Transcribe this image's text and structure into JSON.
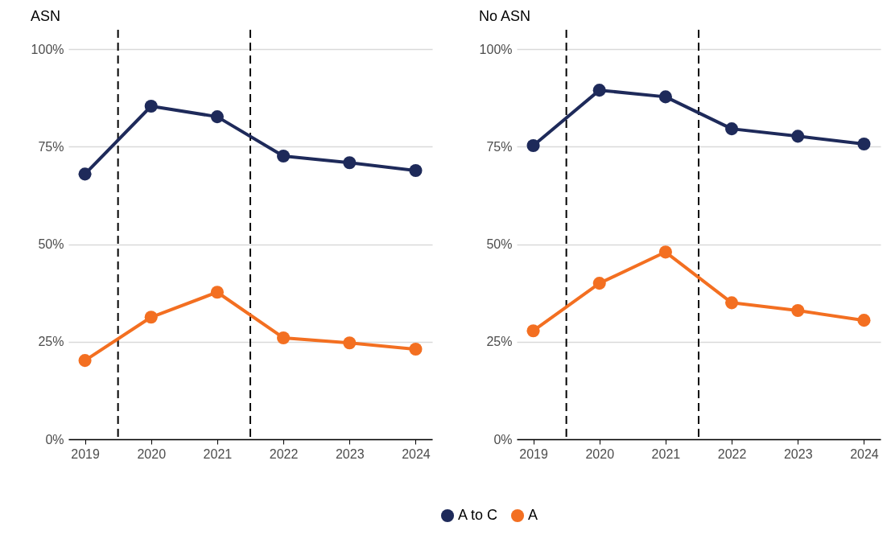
{
  "chart_data": [
    {
      "type": "line",
      "title": "ASN",
      "x": [
        2019,
        2020,
        2021,
        2022,
        2023,
        2024
      ],
      "xlim": [
        2018.75,
        2024.25
      ],
      "xticks": [
        {
          "value": 2019,
          "label": "2019"
        },
        {
          "value": 2020,
          "label": "2020"
        },
        {
          "value": 2021,
          "label": "2021"
        },
        {
          "value": 2022,
          "label": "2022"
        },
        {
          "value": 2023,
          "label": "2023"
        },
        {
          "value": 2024,
          "label": "2024"
        }
      ],
      "ylim": [
        0,
        105
      ],
      "yticks": [
        {
          "value": 0,
          "label": "0%"
        },
        {
          "value": 25,
          "label": "25%"
        },
        {
          "value": 50,
          "label": "50%"
        },
        {
          "value": 75,
          "label": "75%"
        },
        {
          "value": 100,
          "label": "100%"
        }
      ],
      "grid": "y",
      "legend": "bottom",
      "marker": "circle",
      "line_style": "solid",
      "series": [
        {
          "name": "A to C",
          "color": "#1e2a5a",
          "values": [
            68,
            85.4,
            82.7,
            72.6,
            70.9,
            68.9
          ]
        },
        {
          "name": "A",
          "color": "#f36f21",
          "values": [
            20.2,
            31.3,
            37.7,
            26,
            24.7,
            23.1
          ]
        }
      ],
      "ref_lines": [
        {
          "axis": "x",
          "value": 2019.5,
          "line_style": "dashed",
          "color": "#000000"
        },
        {
          "axis": "x",
          "value": 2021.5,
          "line_style": "dashed",
          "color": "#000000"
        }
      ]
    },
    {
      "type": "line",
      "title": "No ASN",
      "x": [
        2019,
        2020,
        2021,
        2022,
        2023,
        2024
      ],
      "xlim": [
        2018.75,
        2024.25
      ],
      "xticks": [
        {
          "value": 2019,
          "label": "2019"
        },
        {
          "value": 2020,
          "label": "2020"
        },
        {
          "value": 2021,
          "label": "2021"
        },
        {
          "value": 2022,
          "label": "2022"
        },
        {
          "value": 2023,
          "label": "2023"
        },
        {
          "value": 2024,
          "label": "2024"
        }
      ],
      "ylim": [
        0,
        105
      ],
      "yticks": [
        {
          "value": 0,
          "label": "0%"
        },
        {
          "value": 25,
          "label": "25%"
        },
        {
          "value": 50,
          "label": "50%"
        },
        {
          "value": 75,
          "label": "75%"
        },
        {
          "value": 100,
          "label": "100%"
        }
      ],
      "grid": "y",
      "legend": "bottom",
      "marker": "circle",
      "line_style": "solid",
      "series": [
        {
          "name": "A to C",
          "color": "#1e2a5a",
          "values": [
            75.3,
            89.5,
            87.8,
            79.6,
            77.7,
            75.7
          ]
        },
        {
          "name": "A",
          "color": "#f36f21",
          "values": [
            27.8,
            40,
            48,
            35,
            33,
            30.5
          ]
        }
      ],
      "ref_lines": [
        {
          "axis": "x",
          "value": 2019.5,
          "line_style": "dashed",
          "color": "#000000"
        },
        {
          "axis": "x",
          "value": 2021.5,
          "line_style": "dashed",
          "color": "#000000"
        }
      ]
    }
  ]
}
